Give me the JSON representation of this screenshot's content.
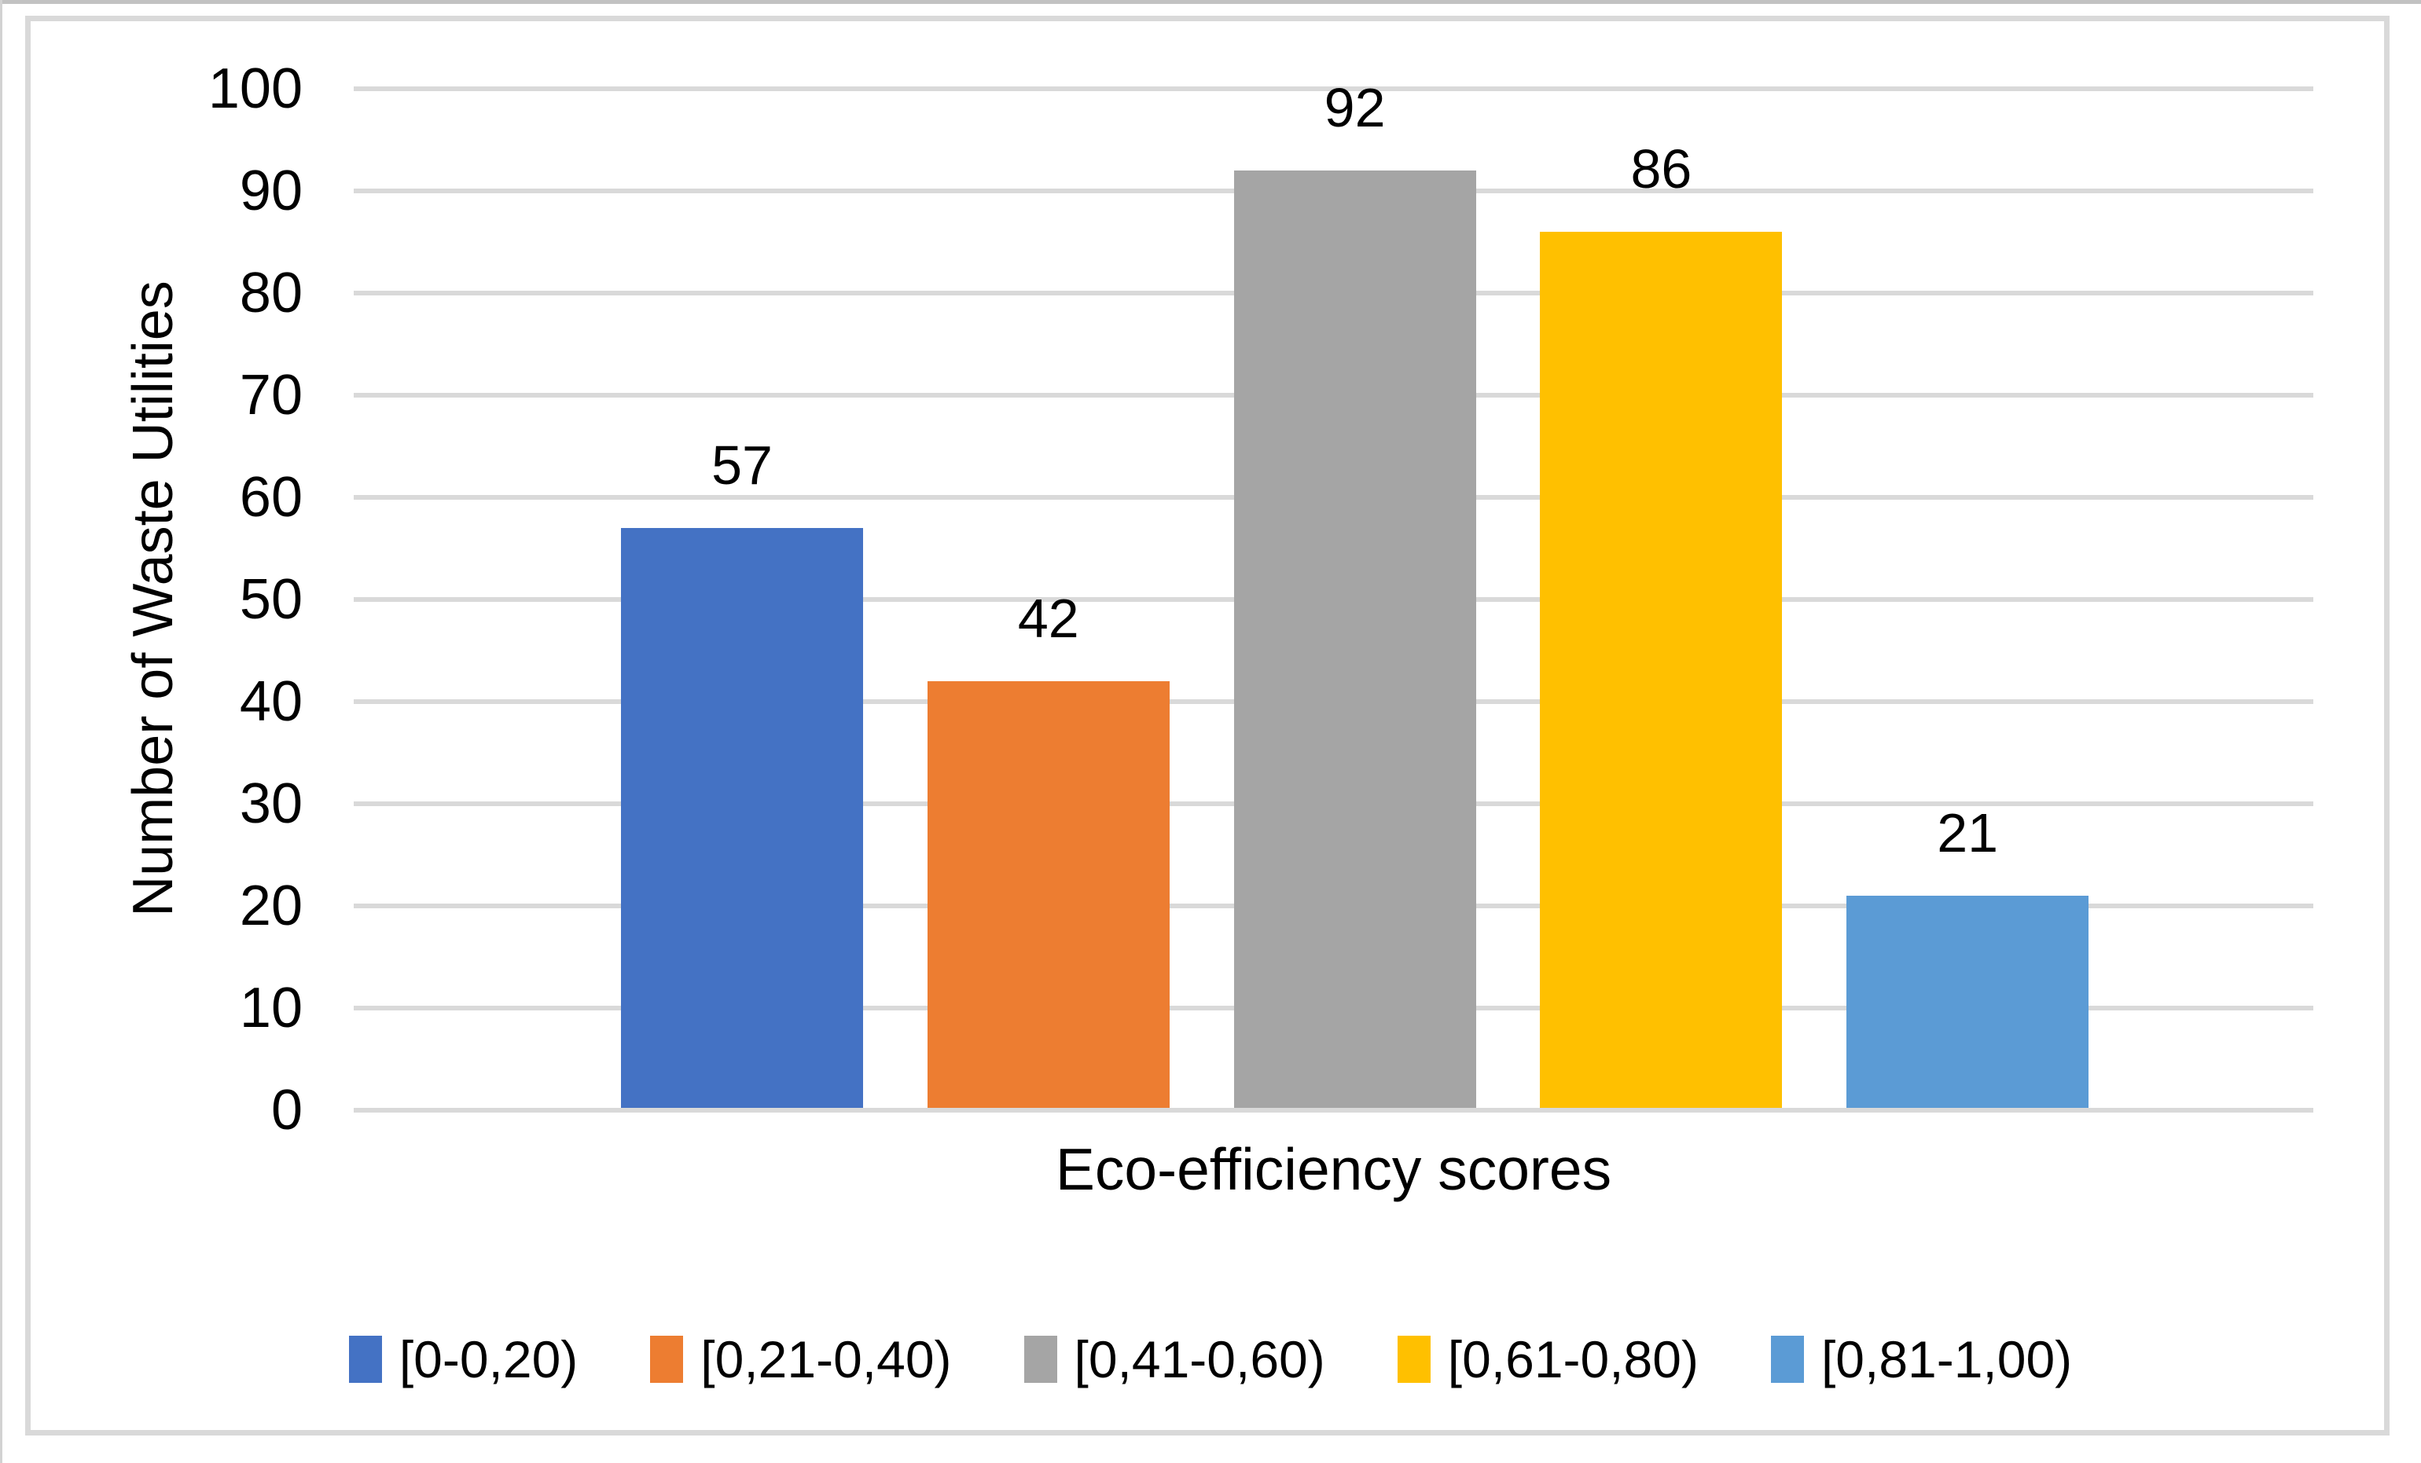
{
  "chart_data": {
    "type": "bar",
    "title": "",
    "xlabel": "Eco-efficiency scores",
    "ylabel": "Number of Waste Utilities",
    "categories": [
      "[0-0,20)",
      "[0,21-0,40)",
      "[0,41-0,60)",
      "[0,61-0,80)",
      "[0,81-1,00)"
    ],
    "values": [
      57,
      42,
      92,
      86,
      21
    ],
    "data_labels": [
      "57",
      "42",
      "92",
      "86",
      "21"
    ],
    "colors": [
      "#4472C4",
      "#ED7D31",
      "#A5A5A5",
      "#FFC000",
      "#5B9BD5"
    ],
    "ylim": [
      0,
      100
    ],
    "yticks": [
      0,
      10,
      20,
      30,
      40,
      50,
      60,
      70,
      80,
      90,
      100
    ],
    "grid": "horizontal",
    "gridline_color": "#D9D9D9",
    "plot_border_color": "#D9D9D9",
    "background": "#FFFFFF",
    "legend_position": "bottom",
    "data_label_position": "outside-end"
  }
}
